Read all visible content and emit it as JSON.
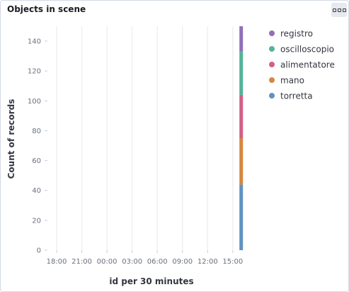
{
  "panel": {
    "title": "Objects in scene",
    "menu_icon": "options-dots-icon"
  },
  "chart_data": {
    "type": "bar",
    "stacked": true,
    "title": "Objects in scene",
    "xlabel": "id per 30 minutes",
    "ylabel": "Count of records",
    "x_ticks": [
      "18:00",
      "21:00",
      "00:00",
      "03:00",
      "06:00",
      "09:00",
      "12:00",
      "15:00"
    ],
    "ylim": [
      0,
      150
    ],
    "y_ticks": [
      0,
      20,
      40,
      60,
      80,
      100,
      120,
      140
    ],
    "grid": {
      "x": true,
      "y": false
    },
    "legend_position": "right",
    "bar_position": "16:00",
    "series": [
      {
        "name": "torretta",
        "value": 44,
        "color": "#6092c0"
      },
      {
        "name": "mano",
        "value": 31,
        "color": "#d6883f"
      },
      {
        "name": "alimentatore",
        "value": 29,
        "color": "#d36086"
      },
      {
        "name": "oscilloscopio",
        "value": 29,
        "color": "#54b399"
      },
      {
        "name": "registro",
        "value": 17,
        "color": "#9170b8"
      }
    ],
    "legend": [
      "registro",
      "oscilloscopio",
      "alimentatore",
      "mano",
      "torretta"
    ]
  }
}
